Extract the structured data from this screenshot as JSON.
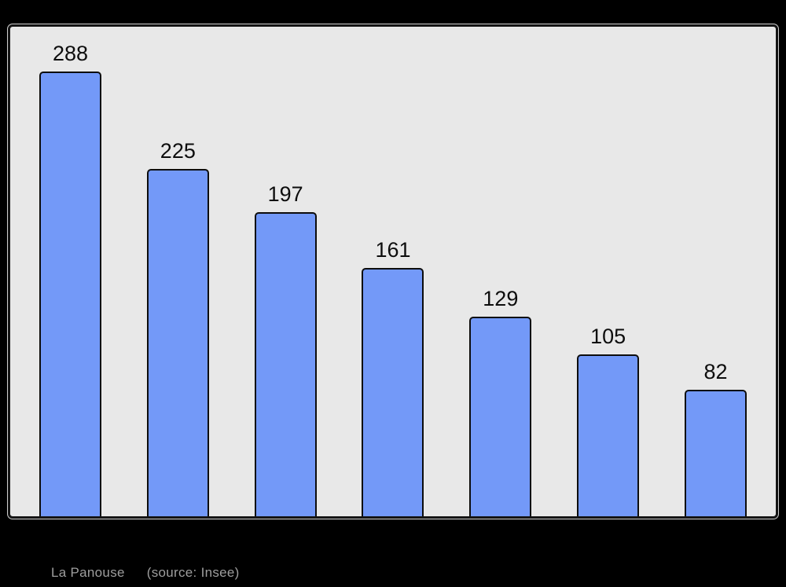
{
  "page": {
    "background_color": "#000000"
  },
  "chart_data": {
    "type": "bar",
    "values": [
      288,
      225,
      197,
      161,
      129,
      105,
      82
    ],
    "value_labels": [
      "288",
      "225",
      "197",
      "161",
      "129",
      "105",
      "82"
    ],
    "title": "",
    "xlabel": "",
    "ylabel": "",
    "ylim": [
      0,
      317
    ],
    "grid": false,
    "legend": false,
    "x_tick_labels_visible": false,
    "y_axis_visible": false,
    "bar_fill_color": "#7399f8",
    "bar_border_color": "#0d0d0d",
    "plot_background_color": "#e8e8e8",
    "plot_border_color": "#141414",
    "value_label_color": "#0d0d0d"
  },
  "caption": {
    "place": "La Panouse",
    "source": "(source: Insee)",
    "text_color": "#9e9e9e"
  }
}
